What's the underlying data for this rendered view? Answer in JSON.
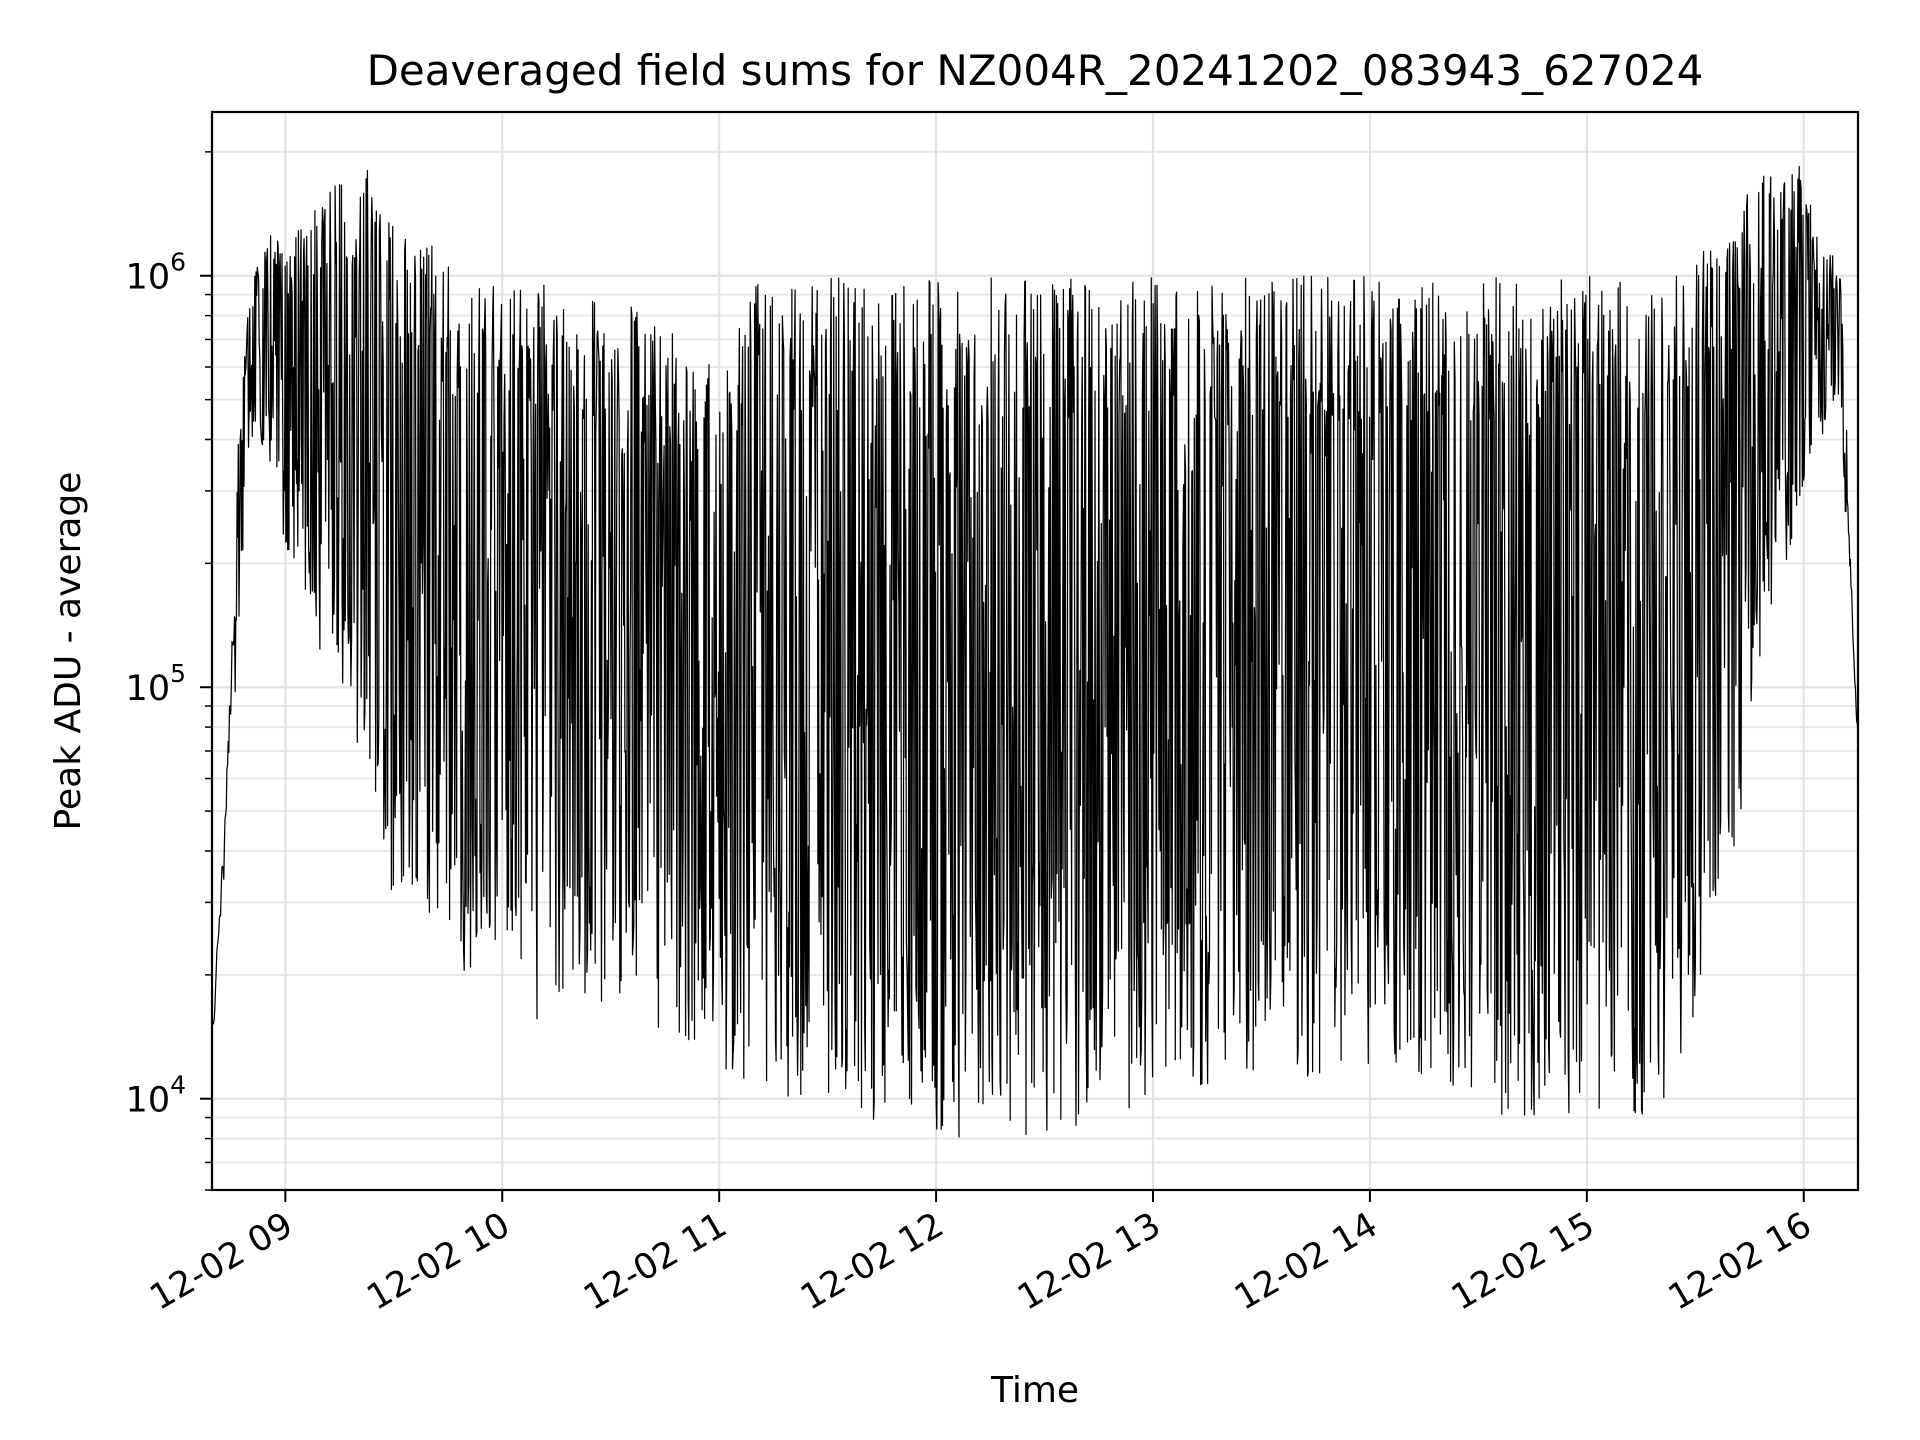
{
  "chart_data": {
    "type": "line",
    "title": "Deaveraged field sums for NZ004R_20241202_083943_627024",
    "xlabel": "Time",
    "ylabel": "Peak ADU - average",
    "yscale": "log",
    "xlim": [
      "2024-12-02T08:39:43",
      "2024-12-02T16:15:00"
    ],
    "ylim": [
      6000,
      2500000
    ],
    "grid": true,
    "line_color": "#000000",
    "x_ticks": [
      {
        "value": "2024-12-02T09:00",
        "label": "12-02 09"
      },
      {
        "value": "2024-12-02T10:00",
        "label": "12-02 10"
      },
      {
        "value": "2024-12-02T11:00",
        "label": "12-02 11"
      },
      {
        "value": "2024-12-02T12:00",
        "label": "12-02 12"
      },
      {
        "value": "2024-12-02T13:00",
        "label": "12-02 13"
      },
      {
        "value": "2024-12-02T14:00",
        "label": "12-02 14"
      },
      {
        "value": "2024-12-02T15:00",
        "label": "12-02 15"
      },
      {
        "value": "2024-12-02T16:00",
        "label": "12-02 16"
      }
    ],
    "y_ticks": [
      {
        "value": 10000,
        "base": "10",
        "exp": "4"
      },
      {
        "value": 100000,
        "base": "10",
        "exp": "5"
      },
      {
        "value": 1000000,
        "base": "10",
        "exp": "6"
      }
    ],
    "series": [
      {
        "envelope": {
          "description_x": "time of day, 2024-12-02",
          "x": [
            "08:40",
            "08:43",
            "08:46",
            "08:50",
            "08:55",
            "09:00",
            "09:10",
            "09:15",
            "09:20",
            "09:25",
            "09:30",
            "09:40",
            "09:50",
            "10:00",
            "10:10",
            "10:20",
            "10:30",
            "10:40",
            "10:50",
            "11:00",
            "11:05",
            "11:10",
            "11:20",
            "11:40",
            "12:00",
            "12:20",
            "12:40",
            "13:00",
            "13:20",
            "13:40",
            "14:00",
            "14:20",
            "14:40",
            "15:00",
            "15:20",
            "15:30",
            "15:40",
            "15:45",
            "15:50",
            "15:55",
            "16:00",
            "16:05",
            "16:10",
            "16:15"
          ],
          "y_max": [
            20000,
            60000,
            300000,
            900000,
            1300000,
            1200000,
            1500000,
            1800000,
            2000000,
            1700000,
            1500000,
            1200000,
            950000,
            950000,
            1000000,
            950000,
            900000,
            800000,
            700000,
            600000,
            900000,
            1000000,
            1000000,
            1000000,
            1000000,
            1000000,
            1000000,
            1000000,
            1000000,
            1000000,
            1000000,
            1000000,
            1000000,
            1000000,
            1000000,
            1100000,
            1500000,
            1700000,
            1800000,
            1700000,
            1900000,
            1200000,
            1100000,
            90000
          ],
          "y_min": [
            11000,
            25000,
            90000,
            400000,
            350000,
            220000,
            120000,
            100000,
            70000,
            50000,
            30000,
            22000,
            20000,
            25000,
            15000,
            15000,
            16000,
            15000,
            14000,
            12000,
            11000,
            11000,
            10000,
            9000,
            8000,
            8000,
            8500,
            10000,
            11000,
            11000,
            11000,
            11000,
            8000,
            8500,
            9000,
            15000,
            30000,
            80000,
            150000,
            200000,
            300000,
            400000,
            500000,
            60000
          ]
        }
      }
    ]
  }
}
